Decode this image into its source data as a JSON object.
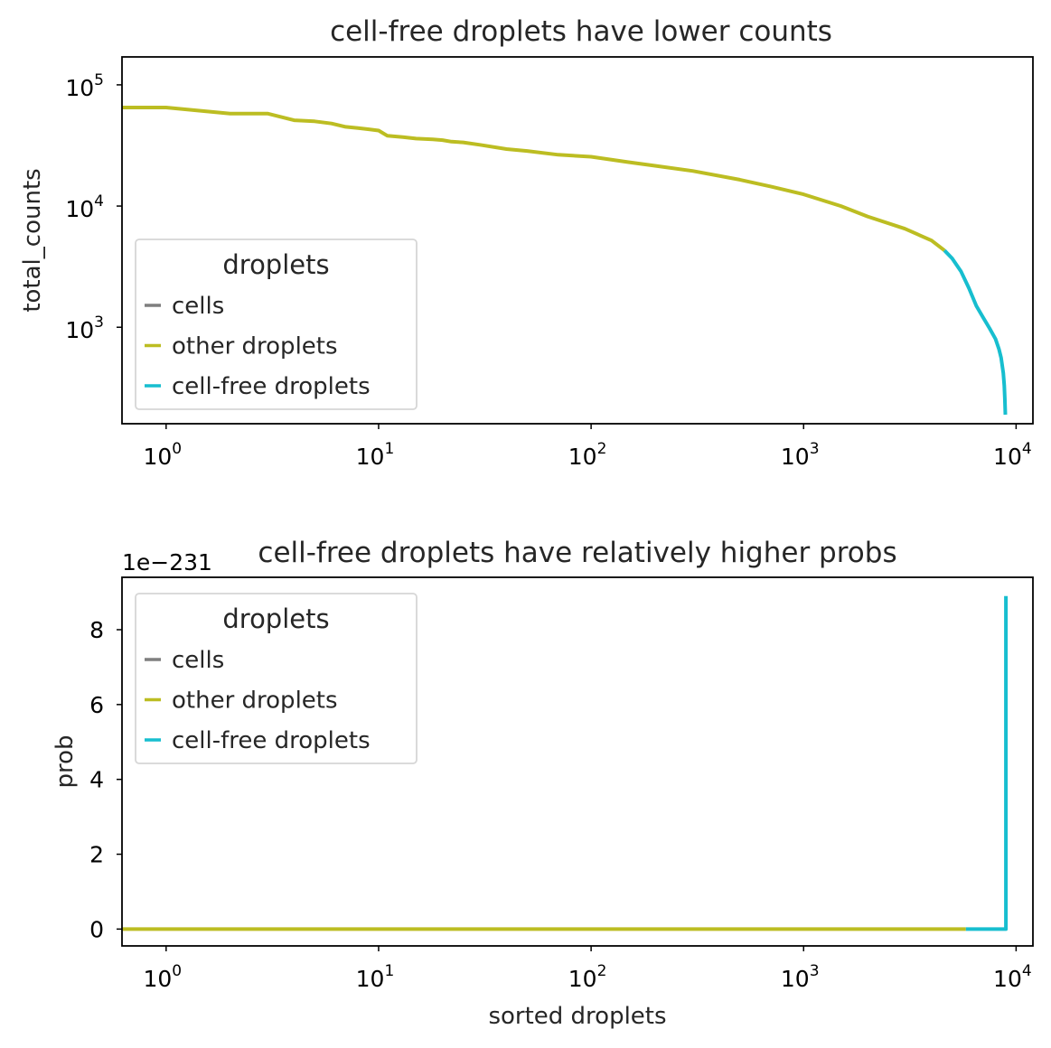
{
  "colors": {
    "cells": "#7f7f7f",
    "other_droplets": "#bcbd22",
    "cell_free_droplets": "#17becf",
    "axes": "#000000",
    "text": "#262626"
  },
  "chart_data": [
    {
      "type": "line",
      "title": "cell-free droplets have lower counts",
      "xlabel": "",
      "ylabel": "total_counts",
      "xscale": "log",
      "yscale": "log",
      "xlim": [
        0.62,
        12000
      ],
      "ylim": [
        160,
        170000
      ],
      "xticks": [
        {
          "value": 1,
          "base": "10",
          "exp": "0"
        },
        {
          "value": 10,
          "base": "10",
          "exp": "1"
        },
        {
          "value": 100,
          "base": "10",
          "exp": "2"
        },
        {
          "value": 1000,
          "base": "10",
          "exp": "3"
        },
        {
          "value": 10000,
          "base": "10",
          "exp": "4"
        }
      ],
      "yticks": [
        {
          "value": 1000,
          "base": "10",
          "exp": "3"
        },
        {
          "value": 10000,
          "base": "10",
          "exp": "4"
        },
        {
          "value": 100000,
          "base": "10",
          "exp": "5"
        }
      ],
      "grid": false,
      "legend": {
        "title": "droplets",
        "placement": "lower-left",
        "entries": [
          "cells",
          "other droplets",
          "cell-free droplets"
        ]
      },
      "series": [
        {
          "name": "cells",
          "x": [],
          "y": []
        },
        {
          "name": "other droplets",
          "x": [
            0.62,
            1,
            2,
            3,
            4,
            5,
            6,
            7,
            8,
            9,
            10,
            11,
            13,
            15,
            18,
            20,
            22,
            25,
            30,
            40,
            50,
            70,
            100,
            150,
            200,
            300,
            500,
            700,
            1000,
            1500,
            2000,
            3000,
            4000,
            4600
          ],
          "y": [
            65000,
            65000,
            58000,
            58000,
            51000,
            50000,
            48000,
            45000,
            44000,
            43000,
            42000,
            38000,
            37000,
            36000,
            35500,
            35000,
            34000,
            33500,
            32000,
            29500,
            28500,
            26500,
            25500,
            23000,
            21500,
            19500,
            16500,
            14500,
            12500,
            10000,
            8200,
            6500,
            5200,
            4300
          ]
        },
        {
          "name": "cell-free droplets",
          "x": [
            4600,
            5000,
            5500,
            6000,
            6500,
            7000,
            7500,
            8000,
            8300,
            8500,
            8700,
            8800,
            8850,
            8900
          ],
          "y": [
            4300,
            3700,
            2900,
            2100,
            1500,
            1200,
            980,
            800,
            660,
            560,
            420,
            330,
            260,
            190
          ]
        }
      ]
    },
    {
      "type": "line",
      "title": "cell-free droplets have relatively higher probs",
      "offset_label": "1e−231",
      "xlabel": "sorted droplets",
      "ylabel": "prob",
      "xscale": "log",
      "yscale": "linear",
      "xlim": [
        0.62,
        12000
      ],
      "ylim": [
        -0.45,
        9.4
      ],
      "xticks": [
        {
          "value": 1,
          "base": "10",
          "exp": "0"
        },
        {
          "value": 10,
          "base": "10",
          "exp": "1"
        },
        {
          "value": 100,
          "base": "10",
          "exp": "2"
        },
        {
          "value": 1000,
          "base": "10",
          "exp": "3"
        },
        {
          "value": 10000,
          "base": "10",
          "exp": "4"
        }
      ],
      "yticks": [
        {
          "value": 0,
          "label": "0"
        },
        {
          "value": 2,
          "label": "2"
        },
        {
          "value": 4,
          "label": "4"
        },
        {
          "value": 6,
          "label": "6"
        },
        {
          "value": 8,
          "label": "8"
        }
      ],
      "grid": false,
      "legend": {
        "title": "droplets",
        "placement": "upper-left",
        "entries": [
          "cells",
          "other droplets",
          "cell-free droplets"
        ]
      },
      "series": [
        {
          "name": "cells",
          "x": [],
          "y": []
        },
        {
          "name": "other droplets",
          "x": [
            0.62,
            5800
          ],
          "y": [
            0,
            0
          ]
        },
        {
          "name": "cell-free droplets",
          "x": [
            5800,
            8950,
            8950
          ],
          "y": [
            0,
            0,
            8.9
          ]
        }
      ]
    }
  ]
}
